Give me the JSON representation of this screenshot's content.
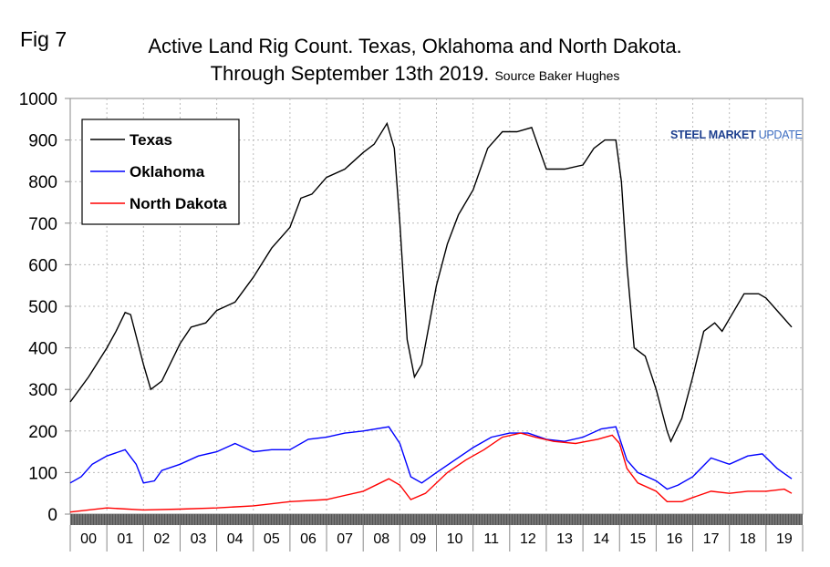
{
  "figure_label": "Fig 7",
  "logo_text": {
    "a": "STEEL",
    "b": "MARKET",
    "c": "UPDATE"
  },
  "chart_data": {
    "type": "line",
    "title_line1": "Active Land Rig Count. Texas, Oklahoma and North Dakota.",
    "title_line2": "Through September 13th 2019.",
    "source": "Source Baker Hughes",
    "xlim": [
      2000,
      2020
    ],
    "ylim": [
      0,
      1000
    ],
    "yticks": [
      0,
      100,
      200,
      300,
      400,
      500,
      600,
      700,
      800,
      900,
      1000
    ],
    "xtick_labels": [
      "00",
      "01",
      "02",
      "03",
      "04",
      "05",
      "06",
      "07",
      "08",
      "09",
      "10",
      "11",
      "12",
      "13",
      "14",
      "15",
      "16",
      "17",
      "18",
      "19"
    ],
    "grid": true,
    "legend_placement": "top-left",
    "series": [
      {
        "name": "Texas",
        "color": "#000000",
        "x": [
          2000,
          2000.5,
          2001,
          2001.25,
          2001.5,
          2001.65,
          2002,
          2002.2,
          2002.5,
          2003,
          2003.3,
          2003.7,
          2004,
          2004.5,
          2005,
          2005.5,
          2006,
          2006.3,
          2006.6,
          2007,
          2007.5,
          2008,
          2008.3,
          2008.65,
          2008.85,
          2009,
          2009.2,
          2009.4,
          2009.6,
          2010,
          2010.3,
          2010.6,
          2011,
          2011.4,
          2011.8,
          2012.2,
          2012.6,
          2012.8,
          2013,
          2013.5,
          2014,
          2014.3,
          2014.6,
          2014.9,
          2015.05,
          2015.2,
          2015.4,
          2015.7,
          2016,
          2016.3,
          2016.4,
          2016.7,
          2017,
          2017.3,
          2017.6,
          2017.8,
          2018,
          2018.4,
          2018.8,
          2019,
          2019.4,
          2019.7
        ],
        "y": [
          270,
          330,
          400,
          440,
          485,
          480,
          360,
          300,
          320,
          410,
          450,
          460,
          490,
          510,
          570,
          640,
          690,
          760,
          770,
          810,
          830,
          870,
          890,
          940,
          880,
          700,
          420,
          330,
          360,
          550,
          650,
          720,
          780,
          880,
          920,
          920,
          930,
          880,
          830,
          830,
          840,
          880,
          900,
          900,
          800,
          600,
          400,
          380,
          300,
          200,
          175,
          230,
          330,
          440,
          460,
          440,
          470,
          530,
          530,
          520,
          480,
          450
        ]
      },
      {
        "name": "Oklahoma",
        "color": "#0000ff",
        "x": [
          2000,
          2000.3,
          2000.6,
          2001,
          2001.5,
          2001.8,
          2002,
          2002.3,
          2002.5,
          2003,
          2003.5,
          2004,
          2004.5,
          2005,
          2005.5,
          2006,
          2006.5,
          2007,
          2007.5,
          2008,
          2008.7,
          2009,
          2009.3,
          2009.6,
          2010,
          2010.5,
          2011,
          2011.5,
          2012,
          2012.5,
          2013,
          2013.5,
          2014,
          2014.5,
          2014.9,
          2015.2,
          2015.5,
          2016,
          2016.3,
          2016.6,
          2017,
          2017.5,
          2018,
          2018.5,
          2018.9,
          2019.3,
          2019.7
        ],
        "y": [
          75,
          90,
          120,
          140,
          155,
          120,
          75,
          80,
          105,
          120,
          140,
          150,
          170,
          150,
          155,
          155,
          180,
          185,
          195,
          200,
          210,
          170,
          90,
          75,
          100,
          130,
          160,
          185,
          195,
          195,
          180,
          175,
          185,
          205,
          210,
          130,
          100,
          80,
          60,
          70,
          90,
          135,
          120,
          140,
          145,
          110,
          85
        ]
      },
      {
        "name": "North Dakota",
        "color": "#ff0000",
        "x": [
          2000,
          2001,
          2002,
          2003,
          2004,
          2005,
          2006,
          2007,
          2008,
          2008.7,
          2009,
          2009.3,
          2009.7,
          2010.3,
          2010.8,
          2011.3,
          2011.8,
          2012.3,
          2012.7,
          2013.2,
          2013.8,
          2014.4,
          2014.8,
          2015,
          2015.2,
          2015.5,
          2016,
          2016.3,
          2016.7,
          2017,
          2017.5,
          2018,
          2018.5,
          2019,
          2019.5,
          2019.7
        ],
        "y": [
          5,
          15,
          10,
          12,
          15,
          20,
          30,
          35,
          55,
          85,
          70,
          35,
          50,
          100,
          130,
          155,
          185,
          195,
          185,
          175,
          170,
          180,
          190,
          170,
          110,
          75,
          55,
          30,
          30,
          40,
          55,
          50,
          55,
          55,
          60,
          50
        ]
      }
    ]
  }
}
